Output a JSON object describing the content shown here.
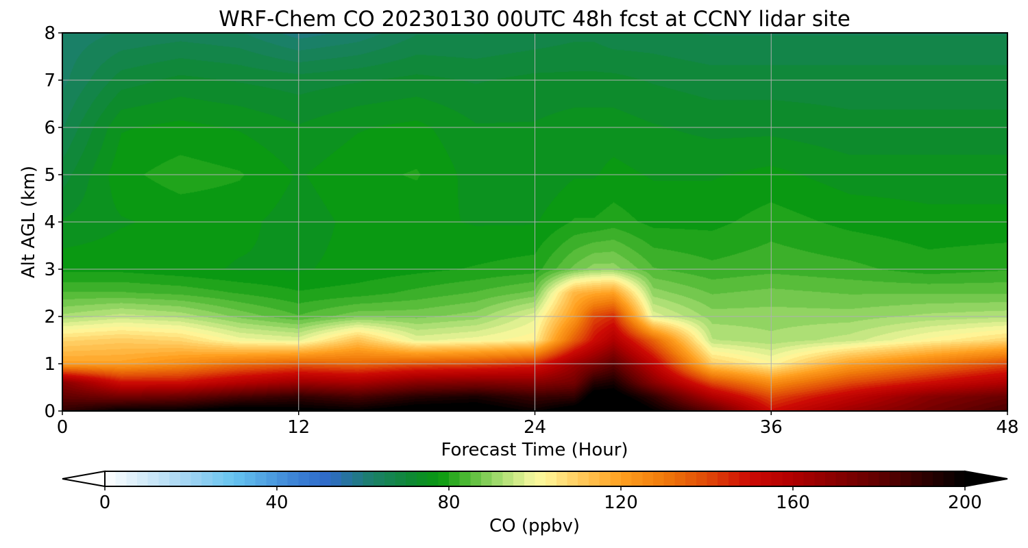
{
  "chart_data": {
    "type": "heatmap",
    "title": "WRF-Chem CO  20230130 00UTC 48h fcst at CCNY lidar site",
    "xlabel": "Forecast Time (Hour)",
    "ylabel": "Alt AGL (km)",
    "xlim": [
      0,
      48
    ],
    "ylim": [
      0,
      8
    ],
    "x_ticks": [
      "0",
      "12",
      "24",
      "36",
      "48"
    ],
    "y_ticks": [
      "0",
      "1",
      "2",
      "3",
      "4",
      "5",
      "6",
      "7",
      "8"
    ],
    "grid": true,
    "x_hours": [
      0,
      3,
      6,
      9,
      12,
      15,
      18,
      21,
      24,
      26,
      27,
      28,
      30,
      33,
      36,
      40,
      44,
      48
    ],
    "alt_km": [
      0,
      0.3,
      0.6,
      1,
      1.5,
      2,
      2.5,
      3,
      4,
      5,
      6,
      7,
      8
    ],
    "co_ppbv": [
      [
        190,
        180,
        170,
        120,
        108,
        92,
        84,
        78,
        74,
        70,
        66,
        63,
        62
      ],
      [
        200,
        175,
        150,
        120,
        110,
        95,
        84,
        78,
        76,
        78,
        76,
        70,
        64
      ],
      [
        200,
        178,
        150,
        125,
        108,
        93,
        83,
        77,
        77,
        80,
        77,
        72,
        65
      ],
      [
        205,
        185,
        158,
        132,
        100,
        88,
        81,
        76,
        77,
        79,
        76,
        71,
        64
      ],
      [
        202,
        190,
        165,
        136,
        98,
        84,
        79,
        76,
        75,
        76,
        74,
        70,
        60
      ],
      [
        200,
        185,
        162,
        134,
        112,
        88,
        80,
        77,
        77,
        78,
        76,
        71,
        62
      ],
      [
        205,
        192,
        170,
        138,
        98,
        88,
        82,
        78,
        77,
        79,
        77,
        72,
        66
      ],
      [
        205,
        195,
        172,
        140,
        100,
        90,
        84,
        79,
        76,
        75,
        74,
        71,
        66
      ],
      [
        198,
        188,
        170,
        145,
        103,
        98,
        87,
        80,
        76,
        74,
        74,
        72,
        67
      ],
      [
        205,
        190,
        175,
        165,
        136,
        122,
        115,
        87,
        79,
        76,
        75,
        72,
        68
      ],
      [
        210,
        205,
        192,
        172,
        150,
        140,
        118,
        90,
        79,
        76,
        75,
        72,
        68
      ],
      [
        215,
        205,
        195,
        180,
        160,
        145,
        120,
        90,
        80,
        77,
        75,
        72,
        67
      ],
      [
        200,
        190,
        170,
        155,
        135,
        98,
        90,
        84,
        78,
        76,
        74,
        71,
        67
      ],
      [
        180,
        160,
        140,
        110,
        94,
        90,
        86,
        82,
        78,
        76,
        73,
        70,
        66
      ],
      [
        150,
        140,
        125,
        102,
        92,
        90,
        87,
        83,
        80,
        77,
        73,
        70,
        66
      ],
      [
        165,
        155,
        140,
        120,
        95,
        90,
        86,
        82,
        78,
        75,
        72,
        70,
        66
      ],
      [
        175,
        170,
        150,
        130,
        102,
        92,
        86,
        80,
        77,
        75,
        72,
        70,
        66
      ],
      [
        185,
        178,
        160,
        140,
        108,
        93,
        86,
        81,
        77,
        75,
        72,
        70,
        66
      ]
    ],
    "colorbar": {
      "label": "CO  (ppbv)",
      "ticks": [
        "0",
        "40",
        "80",
        "120",
        "160",
        "200"
      ],
      "vmin": 0,
      "vmax": 200,
      "extend": "both",
      "colors": [
        {
          "v": 0,
          "c": "#ffffff"
        },
        {
          "v": 20,
          "c": "#9fd3f2"
        },
        {
          "v": 30,
          "c": "#66c4f0"
        },
        {
          "v": 45,
          "c": "#3a7fd4"
        },
        {
          "v": 52,
          "c": "#2f6ac8"
        },
        {
          "v": 62,
          "c": "#1b7f6a"
        },
        {
          "v": 72,
          "c": "#0d8a2e"
        },
        {
          "v": 78,
          "c": "#0a9a10"
        },
        {
          "v": 84,
          "c": "#4cb832"
        },
        {
          "v": 92,
          "c": "#a8dd72"
        },
        {
          "v": 99,
          "c": "#eef59a"
        },
        {
          "v": 102,
          "c": "#fff79a"
        },
        {
          "v": 110,
          "c": "#ffcc60"
        },
        {
          "v": 120,
          "c": "#ffa020"
        },
        {
          "v": 130,
          "c": "#f07a0a"
        },
        {
          "v": 140,
          "c": "#e04a08"
        },
        {
          "v": 150,
          "c": "#cc0a04"
        },
        {
          "v": 160,
          "c": "#b00000"
        },
        {
          "v": 180,
          "c": "#600000"
        },
        {
          "v": 200,
          "c": "#000000"
        }
      ]
    }
  }
}
